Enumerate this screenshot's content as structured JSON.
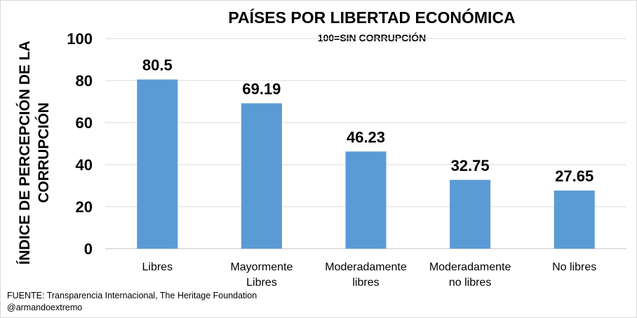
{
  "chart_data": {
    "type": "bar",
    "title": "PAÍSES POR LIBERTAD ECONÓMICA",
    "subtitle": "100=SIN CORRUPCIÓN",
    "ylabel": "ÍNDICE DE PERCEPCIÓN DE LA CORRUPCIÓN",
    "xlabel": "",
    "categories": [
      "Libres",
      "Mayormente Libres",
      "Moderadamente libres",
      "Moderadamente no libres",
      "No libres"
    ],
    "category_lines": [
      [
        "Libres"
      ],
      [
        "Mayormente",
        "Libres"
      ],
      [
        "Moderadamente",
        "libres"
      ],
      [
        "Moderadamente",
        "no libres"
      ],
      [
        "No libres"
      ]
    ],
    "values": [
      80.5,
      69.19,
      46.23,
      32.75,
      27.65
    ],
    "value_labels": [
      "80.5",
      "69.19",
      "46.23",
      "32.75",
      "27.65"
    ],
    "ylim": [
      0,
      100
    ],
    "yticks": [
      0,
      20,
      40,
      60,
      80,
      100
    ],
    "grid": true,
    "bar_color": "#5b9bd5",
    "grid_color": "#d9d9d9"
  },
  "footer": {
    "source": "FUENTE: Transparencia Internacional, The Heritage Foundation",
    "handle": "@armandoextremo"
  }
}
